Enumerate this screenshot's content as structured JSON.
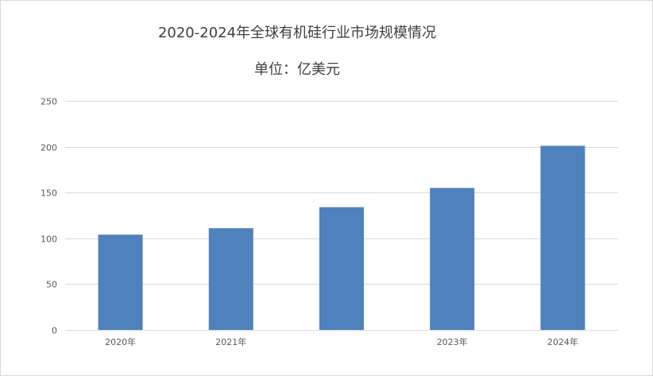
{
  "chart_data": {
    "type": "bar",
    "title": "2020-2024年全球有机硅行业市场规模情况",
    "subtitle": "单位：亿美元",
    "categories": [
      "2020年",
      "2021年",
      "",
      "2023年",
      "2024年"
    ],
    "values": [
      104,
      111,
      134,
      155,
      201
    ],
    "xlabel": "",
    "ylabel": "",
    "ylim": [
      0,
      250
    ],
    "yticks": [
      0,
      50,
      100,
      150,
      200,
      250
    ],
    "grid": true,
    "legend": "none",
    "bar_color": "#4f81bd",
    "grid_color": "#d9d9d9"
  }
}
